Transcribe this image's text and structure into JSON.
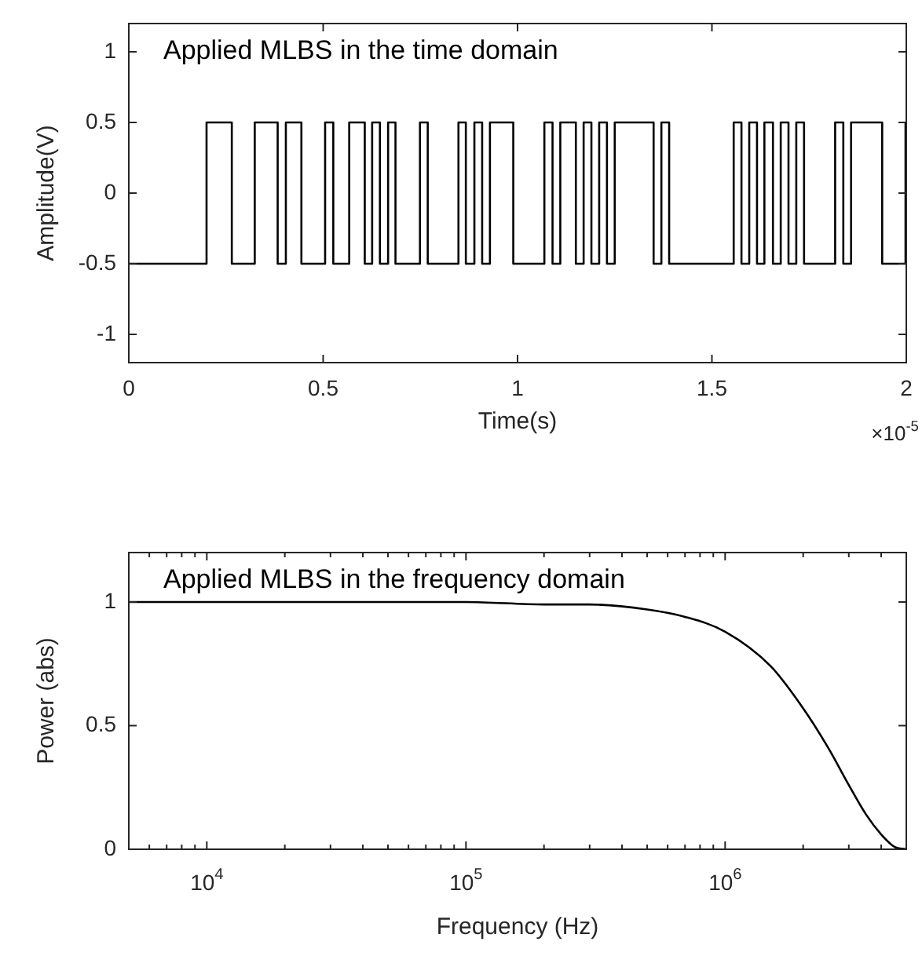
{
  "chart_data": [
    {
      "type": "step",
      "title": "Applied MLBS in the time domain",
      "xlabel": "Time(s)",
      "ylabel": "Amplitude(V)",
      "annotations": [
        "×10$^{-5}$"
      ],
      "series": [
        {
          "color": "#000000",
          "x": [
            0,
            0.2,
            0.265,
            0.324,
            0.383,
            0.404,
            0.444,
            0.505,
            0.526,
            0.567,
            0.607,
            0.626,
            0.646,
            0.667,
            0.686,
            0.749,
            0.769,
            0.848,
            0.867,
            0.889,
            0.909,
            0.929,
            0.989,
            1.069,
            1.09,
            1.11,
            1.15,
            1.17,
            1.19,
            1.21,
            1.23,
            1.25,
            1.35,
            1.37,
            1.39,
            1.556,
            1.576,
            1.596,
            1.616,
            1.635,
            1.657,
            1.677,
            1.697,
            1.717,
            1.737,
            1.817,
            1.838,
            1.858,
            1.938,
            1.998,
            2
          ],
          "values": [
            -0.5,
            0.5,
            -0.5,
            0.5,
            -0.5,
            0.5,
            -0.5,
            0.5,
            -0.5,
            0.5,
            -0.5,
            0.5,
            -0.5,
            0.5,
            -0.5,
            0.5,
            -0.5,
            0.5,
            -0.5,
            0.5,
            -0.5,
            0.5,
            -0.5,
            0.5,
            -0.5,
            0.5,
            -0.5,
            0.5,
            -0.5,
            0.5,
            -0.5,
            0.5,
            -0.5,
            0.5,
            -0.5,
            0.5,
            -0.5,
            0.5,
            -0.5,
            0.5,
            -0.5,
            0.5,
            -0.5,
            0.5,
            -0.5,
            0.5,
            -0.5,
            0.5,
            -0.5,
            0.5,
            0.5
          ]
        }
      ],
      "xlim": [
        0,
        2
      ],
      "xticks": [
        0,
        0.5,
        1,
        1.5,
        2
      ],
      "ylim": [
        -1.2,
        1.2
      ],
      "yticks": [
        -1,
        -0.5,
        0,
        0.5,
        1
      ],
      "grid": false,
      "legend": false,
      "marker": "none",
      "line_style": "solid"
    },
    {
      "type": "line",
      "title": "Applied MLBS in the frequency domain",
      "xlabel": "Frequency (Hz)",
      "ylabel": "Power (abs)",
      "log": "x",
      "series": [
        {
          "color": "#000000",
          "x": [
            5000,
            100000,
            200000,
            300000,
            500000,
            700000,
            1000000,
            1500000,
            2000000,
            2500000,
            3000000,
            3500000,
            4000000,
            4500000,
            5000000
          ],
          "values": [
            1,
            1,
            0.99,
            0.99,
            0.97,
            0.94,
            0.88,
            0.74,
            0.57,
            0.41,
            0.26,
            0.14,
            0.06,
            0.01,
            0
          ]
        }
      ],
      "xlim": [
        5000,
        5000000
      ],
      "xticks": [
        {
          "value": 6000,
          "label": null
        },
        {
          "value": 7000,
          "label": null
        },
        {
          "value": 8000,
          "label": null
        },
        {
          "value": 9000,
          "label": null
        },
        {
          "value": 10000,
          "label": "10$^{4}$"
        },
        {
          "value": 20000,
          "label": null
        },
        {
          "value": 30000,
          "label": null
        },
        {
          "value": 40000,
          "label": null
        },
        {
          "value": 50000,
          "label": null
        },
        {
          "value": 60000,
          "label": null
        },
        {
          "value": 70000,
          "label": null
        },
        {
          "value": 80000,
          "label": null
        },
        {
          "value": 90000,
          "label": null
        },
        {
          "value": 100000,
          "label": "10$^{5}$"
        },
        {
          "value": 200000,
          "label": null
        },
        {
          "value": 300000,
          "label": null
        },
        {
          "value": 400000,
          "label": null
        },
        {
          "value": 500000,
          "label": null
        },
        {
          "value": 600000,
          "label": null
        },
        {
          "value": 700000,
          "label": null
        },
        {
          "value": 800000,
          "label": null
        },
        {
          "value": 900000,
          "label": null
        },
        {
          "value": 1000000,
          "label": "10$^{6}$"
        },
        {
          "value": 2000000,
          "label": null
        },
        {
          "value": 3000000,
          "label": null
        },
        {
          "value": 4000000,
          "label": null
        }
      ],
      "ylim": [
        0,
        1.2
      ],
      "yticks": [
        0,
        0.5,
        1
      ],
      "grid": false,
      "legend": false,
      "marker": "none",
      "line_style": "solid"
    }
  ]
}
